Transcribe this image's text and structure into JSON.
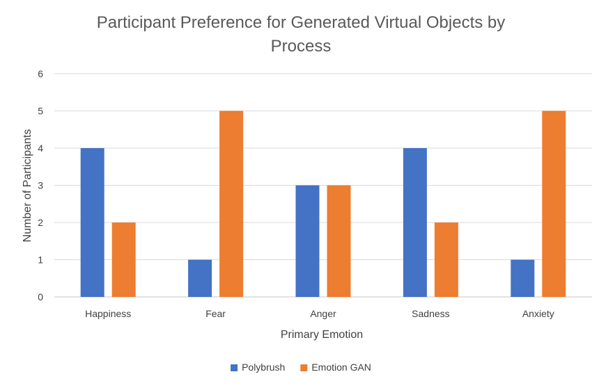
{
  "chart_data": {
    "type": "bar",
    "title_lines": [
      "Participant Preference for Generated Virtual Objects by",
      "Process"
    ],
    "xlabel": "Primary Emotion",
    "ylabel": "Number of Participants",
    "categories": [
      "Happiness",
      "Fear",
      "Anger",
      "Sadness",
      "Anxiety"
    ],
    "ylim": [
      0,
      6
    ],
    "yticks": [
      "0",
      "1",
      "2",
      "3",
      "4",
      "5",
      "6"
    ],
    "grid": true,
    "legend_position": "bottom",
    "series": [
      {
        "name": "Polybrush",
        "color": "#4472C4",
        "values": [
          4,
          1,
          3,
          4,
          1
        ]
      },
      {
        "name": "Emotion GAN",
        "color": "#ED7D31",
        "values": [
          2,
          5,
          3,
          2,
          5
        ]
      }
    ]
  }
}
